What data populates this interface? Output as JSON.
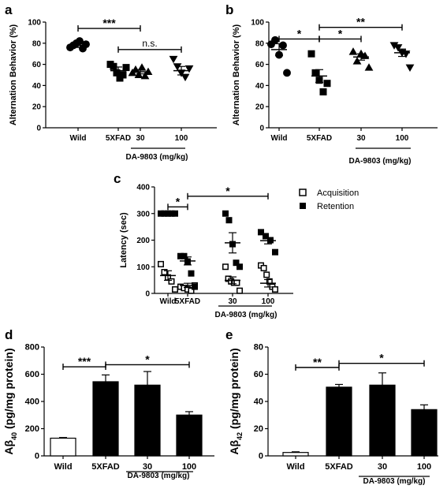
{
  "panels": {
    "a": {
      "letter": "a",
      "drug_label": "DA-9803 (mg/kg)"
    },
    "b": {
      "letter": "b",
      "drug_label": "DA-9803 (mg/kg)"
    },
    "c": {
      "letter": "c",
      "drug_label": "DA-9803 (mg/kg)"
    },
    "d": {
      "letter": "d",
      "drug_label": "DA-9803 (mg/kg)"
    },
    "e": {
      "letter": "e",
      "drug_label": "DA-9803 (mg/kg)"
    }
  },
  "chart_data": [
    {
      "id": "a",
      "type": "scatter",
      "categories": [
        "Wild",
        "5XFAD",
        "30",
        "100"
      ],
      "ylabel": "Alternation Behavior (%)",
      "ylim": [
        0,
        100
      ],
      "yticks": [
        0,
        20,
        40,
        60,
        80,
        100
      ],
      "marker_colors": [
        "#000000"
      ],
      "markers": [
        "circle",
        "square",
        "triangle-up",
        "triangle-down"
      ],
      "points": [
        [
          76,
          78,
          80,
          82,
          75,
          79
        ],
        [
          60,
          58,
          52,
          47,
          50,
          57
        ],
        [
          52,
          55,
          50,
          57,
          49,
          53
        ],
        [
          65,
          58,
          52,
          48,
          56
        ]
      ],
      "mean": [
        78,
        54,
        53,
        54
      ],
      "sem": [
        2,
        3.5,
        2,
        4
      ],
      "comparisons": [
        {
          "from": 0,
          "to": 2,
          "label": "***",
          "y": 94
        },
        {
          "from": 1,
          "to": 3,
          "label": "n.s.",
          "y": 74
        }
      ]
    },
    {
      "id": "b",
      "type": "scatter",
      "categories": [
        "Wild",
        "5XFAD",
        "30",
        "100"
      ],
      "ylabel": "Alternation Behavior (%)",
      "ylim": [
        0,
        100
      ],
      "yticks": [
        0,
        20,
        40,
        60,
        80,
        100
      ],
      "markers": [
        "circle",
        "square",
        "triangle-up",
        "triangle-down"
      ],
      "points": [
        [
          79,
          83,
          69,
          78,
          52
        ],
        [
          70,
          52,
          45,
          34,
          42
        ],
        [
          72,
          63,
          70,
          68,
          57
        ],
        [
          78,
          76,
          71,
          70,
          57
        ]
      ],
      "mean": [
        74,
        49,
        67,
        71
      ],
      "sem": [
        5.5,
        6,
        3,
        3.5
      ],
      "comparisons": [
        {
          "from": 0,
          "to": 1,
          "label": "*",
          "y": 84
        },
        {
          "from": 1,
          "to": 2,
          "label": "*",
          "y": 84
        },
        {
          "from": 1,
          "to": 3,
          "label": "**",
          "y": 95
        }
      ]
    },
    {
      "id": "c",
      "type": "scatter",
      "categories": [
        "Wild",
        "5XFAD",
        "30",
        "100"
      ],
      "ylabel": "Latency (sec)",
      "ylim": [
        0,
        400
      ],
      "yticks": [
        0,
        100,
        200,
        300,
        400
      ],
      "series": [
        {
          "name": "Acquisition",
          "marker": "open-square",
          "points": [
            [
              110,
              80,
              60,
              45,
              15
            ],
            [
              25,
              20,
              15,
              10,
              30
            ],
            [
              100,
              55,
              45,
              40,
              40,
              10
            ],
            [
              105,
              95,
              70,
              45,
              25,
              15
            ]
          ],
          "mean": [
            67,
            30,
            49,
            38
          ],
          "sem": [
            18,
            8,
            13,
            14
          ]
        },
        {
          "name": "Retention",
          "marker": "filled-square",
          "points": [
            [
              300,
              300,
              300,
              300,
              300
            ],
            [
              140,
              140,
              120,
              75,
              25
            ],
            [
              300,
              275,
              185,
              115,
              100
            ],
            [
              230,
              215,
              200,
              155
            ]
          ],
          "mean": [
            300,
            122,
            190,
            198
          ],
          "sem": [
            0,
            15,
            38,
            12
          ]
        }
      ],
      "comparisons": [
        {
          "from": 0,
          "to": 1,
          "label": "*",
          "y": 325
        },
        {
          "from": 1,
          "to": 3,
          "label": "*",
          "y": 365
        }
      ]
    },
    {
      "id": "d",
      "type": "bar",
      "categories": [
        "Wild",
        "5XFAD",
        "30",
        "100"
      ],
      "ylabel": "Aβ40 (pg/mg protein)",
      "ylabel_main": "Aβ",
      "ylabel_sub": "40",
      "ylabel_rest": " (pg/mg protein)",
      "ylim": [
        0,
        800
      ],
      "yticks": [
        0,
        200,
        400,
        600,
        800
      ],
      "values": [
        130,
        545,
        520,
        300
      ],
      "errors": [
        5,
        50,
        100,
        25
      ],
      "bar_fills": [
        "#ffffff",
        "#000000",
        "#000000",
        "#000000"
      ],
      "comparisons": [
        {
          "from": 0,
          "to": 1,
          "label": "***",
          "y": 655
        },
        {
          "from": 1,
          "to": 3,
          "label": "*",
          "y": 670
        }
      ]
    },
    {
      "id": "e",
      "type": "bar",
      "categories": [
        "Wild",
        "5XFAD",
        "30",
        "100"
      ],
      "ylabel": "Aβ42 (pg/mg protein)",
      "ylabel_main": "Aβ",
      "ylabel_sub": "42",
      "ylabel_rest": " (pg/mg protein)",
      "ylim": [
        0,
        80
      ],
      "yticks": [
        0,
        20,
        40,
        60,
        80
      ],
      "values": [
        2.5,
        50.5,
        52,
        34
      ],
      "errors": [
        0.5,
        2,
        9,
        3.5
      ],
      "bar_fills": [
        "#ffffff",
        "#000000",
        "#000000",
        "#000000"
      ],
      "comparisons": [
        {
          "from": 0,
          "to": 1,
          "label": "**",
          "y": 65
        },
        {
          "from": 1,
          "to": 3,
          "label": "*",
          "y": 68
        }
      ]
    }
  ]
}
